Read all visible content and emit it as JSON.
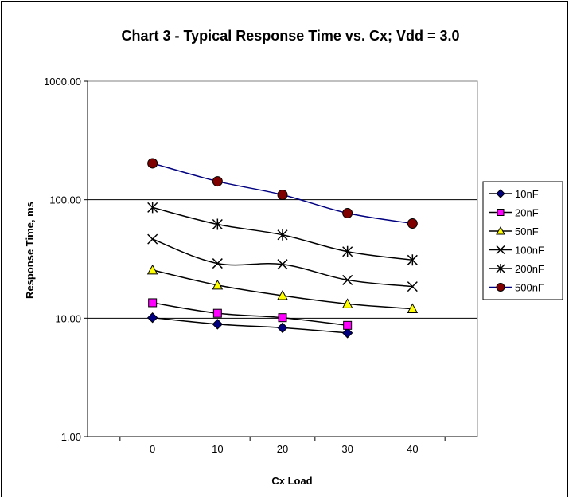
{
  "chart_data": {
    "type": "line",
    "title": "Chart 3 - Typical Response Time vs. Cx; Vdd = 3.0",
    "xlabel": "Cx Load",
    "ylabel": "Response Time, ms",
    "y_scale": "log",
    "ylim": [
      1,
      1000
    ],
    "xlim": [
      -10,
      50
    ],
    "x_ticks": [
      "0",
      "10",
      "20",
      "30",
      "40"
    ],
    "y_ticks": [
      "1.00",
      "10.00",
      "100.00",
      "1000.00"
    ],
    "grid": "horizontal major lines",
    "legend_position": "right",
    "series": [
      {
        "name": "10nF",
        "marker": "diamond",
        "color": "#000080",
        "line_color": "#000000",
        "x": [
          0,
          10,
          20,
          30
        ],
        "values": [
          10.1,
          8.9,
          8.3,
          7.5
        ]
      },
      {
        "name": "20nF",
        "marker": "square",
        "color": "#FF00FF",
        "line_color": "#000000",
        "x": [
          0,
          10,
          20,
          30
        ],
        "values": [
          13.5,
          11.0,
          10.1,
          8.7
        ]
      },
      {
        "name": "50nF",
        "marker": "triangle",
        "color": "#FFFF00",
        "line_color": "#000000",
        "x": [
          0,
          10,
          20,
          30,
          40
        ],
        "values": [
          25.5,
          19.0,
          15.5,
          13.2,
          12.0
        ]
      },
      {
        "name": "100nF",
        "marker": "x",
        "color": "#000000",
        "line_color": "#000000",
        "x": [
          0,
          10,
          20,
          30,
          40
        ],
        "values": [
          46.5,
          29.0,
          28.5,
          21.0,
          18.5
        ]
      },
      {
        "name": "200nF",
        "marker": "star",
        "color": "#000000",
        "line_color": "#000000",
        "x": [
          0,
          10,
          20,
          30,
          40
        ],
        "values": [
          86.0,
          62.0,
          50.5,
          36.5,
          31.0
        ]
      },
      {
        "name": "500nF",
        "marker": "circle",
        "color": "#800000",
        "line_color": "#000080",
        "x": [
          0,
          10,
          20,
          30,
          40
        ],
        "values": [
          203.0,
          143.0,
          110.0,
          77.0,
          63.0
        ]
      }
    ]
  }
}
